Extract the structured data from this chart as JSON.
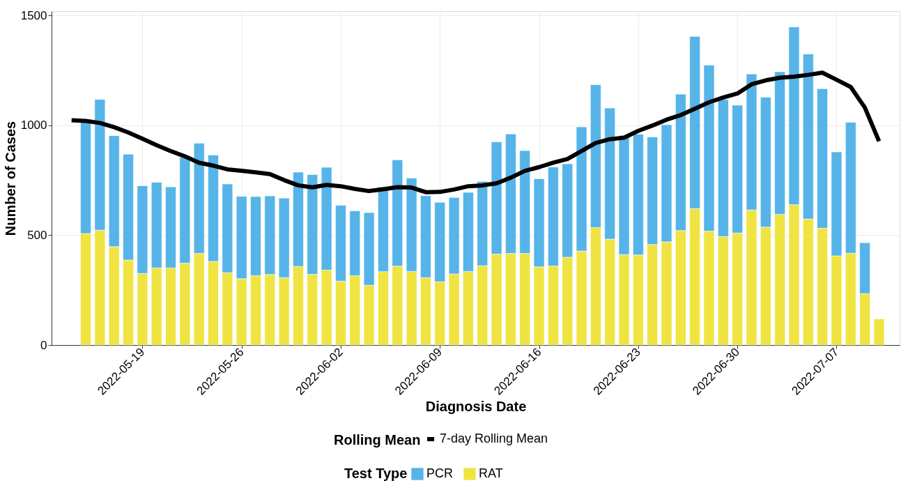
{
  "chart_data": {
    "type": "bar",
    "stacked": true,
    "xlabel": "Diagnosis Date",
    "ylabel": "Number of Cases",
    "legend_title": [
      "Rolling Mean",
      "Test Type"
    ],
    "legend": "bottom",
    "grid": true,
    "x": [
      "2022-05-15",
      "2022-05-16",
      "2022-05-17",
      "2022-05-18",
      "2022-05-19",
      "2022-05-20",
      "2022-05-21",
      "2022-05-22",
      "2022-05-23",
      "2022-05-24",
      "2022-05-25",
      "2022-05-26",
      "2022-05-27",
      "2022-05-28",
      "2022-05-29",
      "2022-05-30",
      "2022-05-31",
      "2022-06-01",
      "2022-06-02",
      "2022-06-03",
      "2022-06-04",
      "2022-06-05",
      "2022-06-06",
      "2022-06-07",
      "2022-06-08",
      "2022-06-09",
      "2022-06-10",
      "2022-06-11",
      "2022-06-12",
      "2022-06-13",
      "2022-06-14",
      "2022-06-15",
      "2022-06-16",
      "2022-06-17",
      "2022-06-18",
      "2022-06-19",
      "2022-06-20",
      "2022-06-21",
      "2022-06-22",
      "2022-06-23",
      "2022-06-24",
      "2022-06-25",
      "2022-06-26",
      "2022-06-27",
      "2022-06-28",
      "2022-06-29",
      "2022-06-30",
      "2022-07-01",
      "2022-07-02",
      "2022-07-03",
      "2022-07-04",
      "2022-07-05",
      "2022-07-06",
      "2022-07-07",
      "2022-07-08",
      "2022-07-09",
      "2022-07-10"
    ],
    "xlim": [
      "2022-05-12T20:00",
      "2022-07-11T05:00"
    ],
    "xticks": [
      "2022-05-19",
      "2022-05-26",
      "2022-06-02",
      "2022-06-09",
      "2022-06-16",
      "2022-06-23",
      "2022-06-30",
      "2022-07-07"
    ],
    "ylim": [
      0,
      1520
    ],
    "yticks": [
      0,
      500,
      1000,
      1500
    ],
    "series": [
      {
        "name": "RAT",
        "color": "#f0e442",
        "values": [
          508,
          523,
          448,
          387,
          326,
          351,
          351,
          373,
          417,
          381,
          329,
          302,
          316,
          321,
          307,
          358,
          322,
          341,
          291,
          316,
          272,
          334,
          359,
          335,
          307,
          288,
          324,
          335,
          361,
          414,
          417,
          417,
          356,
          360,
          400,
          428,
          535,
          482,
          412,
          410,
          458,
          470,
          521,
          621,
          519,
          494,
          510,
          615,
          537,
          595,
          639,
          574,
          532,
          406,
          418,
          234,
          119
        ]
      },
      {
        "name": "PCR",
        "color": "#56b4e9",
        "values": [
          507,
          595,
          505,
          482,
          399,
          390,
          369,
          482,
          502,
          484,
          404,
          375,
          360,
          358,
          362,
          429,
          454,
          468,
          345,
          295,
          331,
          386,
          484,
          425,
          373,
          362,
          348,
          360,
          384,
          511,
          544,
          468,
          401,
          450,
          425,
          565,
          650,
          597,
          542,
          550,
          489,
          533,
          621,
          784,
          755,
          624,
          582,
          619,
          591,
          649,
          809,
          751,
          635,
          473,
          596,
          232,
          null
        ]
      },
      {
        "name": "7-day Rolling Mean",
        "type": "line",
        "color": "#000000",
        "line_style": "solid",
        "x": [
          "2022-05-14",
          "2022-05-15",
          "2022-05-16",
          "2022-05-17",
          "2022-05-18",
          "2022-05-19",
          "2022-05-20",
          "2022-05-21",
          "2022-05-22",
          "2022-05-23",
          "2022-05-24",
          "2022-05-25",
          "2022-05-26",
          "2022-05-27",
          "2022-05-28",
          "2022-05-29",
          "2022-05-30",
          "2022-05-31",
          "2022-06-01",
          "2022-06-02",
          "2022-06-03",
          "2022-06-04",
          "2022-06-05",
          "2022-06-06",
          "2022-06-07",
          "2022-06-08",
          "2022-06-09",
          "2022-06-10",
          "2022-06-11",
          "2022-06-12",
          "2022-06-13",
          "2022-06-14",
          "2022-06-15",
          "2022-06-16",
          "2022-06-17",
          "2022-06-18",
          "2022-06-19",
          "2022-06-20",
          "2022-06-21",
          "2022-06-22",
          "2022-06-23",
          "2022-06-24",
          "2022-06-25",
          "2022-06-26",
          "2022-06-27",
          "2022-06-28",
          "2022-06-29",
          "2022-06-30",
          "2022-07-01",
          "2022-07-02",
          "2022-07-03",
          "2022-07-04",
          "2022-07-05",
          "2022-07-06",
          "2022-07-07",
          "2022-07-08",
          "2022-07-09",
          "2022-07-10"
        ],
        "values": [
          1023,
          1020,
          1011,
          992,
          968,
          939,
          910,
          883,
          859,
          830,
          817,
          800,
          793,
          786,
          778,
          751,
          727,
          718,
          729,
          723,
          711,
          701,
          709,
          719,
          717,
          696,
          697,
          708,
          723,
          727,
          736,
          762,
          793,
          810,
          830,
          847,
          883,
          920,
          937,
          944,
          975,
          999,
          1026,
          1047,
          1076,
          1105,
          1127,
          1145,
          1187,
          1205,
          1217,
          1222,
          1230,
          1240,
          1208,
          1175,
          1081,
          928
        ]
      }
    ]
  }
}
